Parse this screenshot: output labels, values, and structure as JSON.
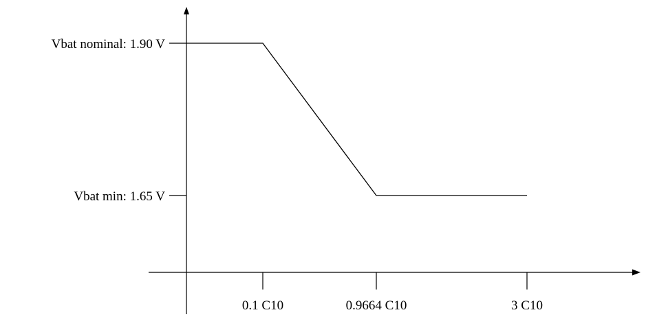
{
  "chart_data": {
    "type": "line",
    "title": "",
    "xlabel": "",
    "ylabel": "",
    "x_ticks": [
      {
        "label": "0.1 C10",
        "value": 0.1
      },
      {
        "label": "0.9664 C10",
        "value": 0.9664
      },
      {
        "label": "3 C10",
        "value": 3
      }
    ],
    "y_ticks": [
      {
        "label": "Vbat nominal: 1.90 V",
        "value": 1.9
      },
      {
        "label": "Vbat min: 1.65 V",
        "value": 1.65
      }
    ],
    "series": [
      {
        "points": [
          {
            "x": 0,
            "y": 1.9
          },
          {
            "x": 0.1,
            "y": 1.9
          },
          {
            "x": 0.9664,
            "y": 1.65
          },
          {
            "x": 3,
            "y": 1.65
          }
        ]
      }
    ],
    "x_scale": "categorical-ticks",
    "grid": false,
    "legend": "none",
    "colors": {
      "axis": "#000000",
      "line": "#000000",
      "background": "#ffffff"
    }
  }
}
